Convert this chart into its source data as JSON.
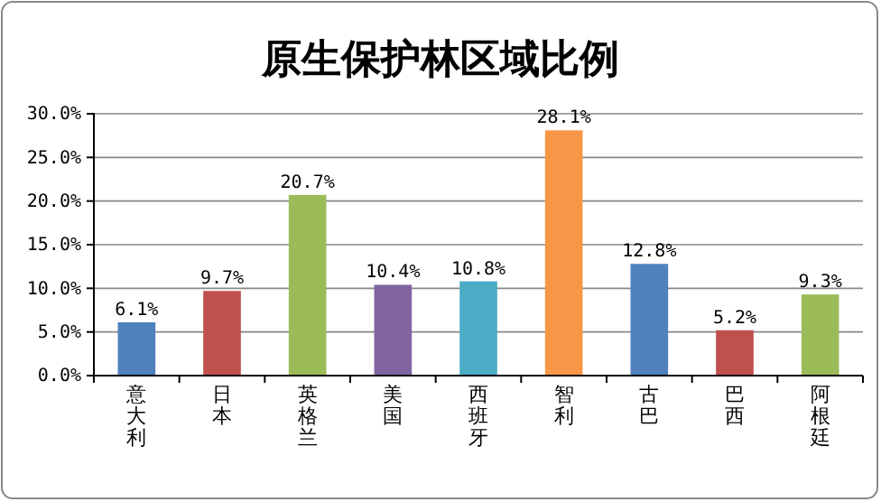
{
  "chart_data": {
    "type": "bar",
    "title": "原生保护林区域比例",
    "categories": [
      "意大利",
      "日本",
      "英格兰",
      "美国",
      "西班牙",
      "智利",
      "古巴",
      "巴西",
      "阿根廷"
    ],
    "values": [
      6.1,
      9.7,
      20.7,
      10.4,
      10.8,
      28.1,
      12.8,
      5.2,
      9.3
    ],
    "colors": [
      "#4f81bd",
      "#c0504d",
      "#9bbb59",
      "#8064a2",
      "#4bacc6",
      "#f79646",
      "#4f81bd",
      "#c0504d",
      "#9bbb59"
    ],
    "value_labels": [
      "6.1%",
      "9.7%",
      "20.7%",
      "10.4%",
      "10.8%",
      "28.1%",
      "12.8%",
      "5.2%",
      "9.3%"
    ],
    "ylim": [
      0,
      30
    ],
    "yticks": [
      {
        "value": 0,
        "label": "0.0%"
      },
      {
        "value": 5,
        "label": "5.0%"
      },
      {
        "value": 10,
        "label": "10.0%"
      },
      {
        "value": 15,
        "label": "15.0%"
      },
      {
        "value": 20,
        "label": "20.0%"
      },
      {
        "value": 25,
        "label": "25.0%"
      },
      {
        "value": 30,
        "label": "30.0%"
      }
    ],
    "grid": "y"
  }
}
